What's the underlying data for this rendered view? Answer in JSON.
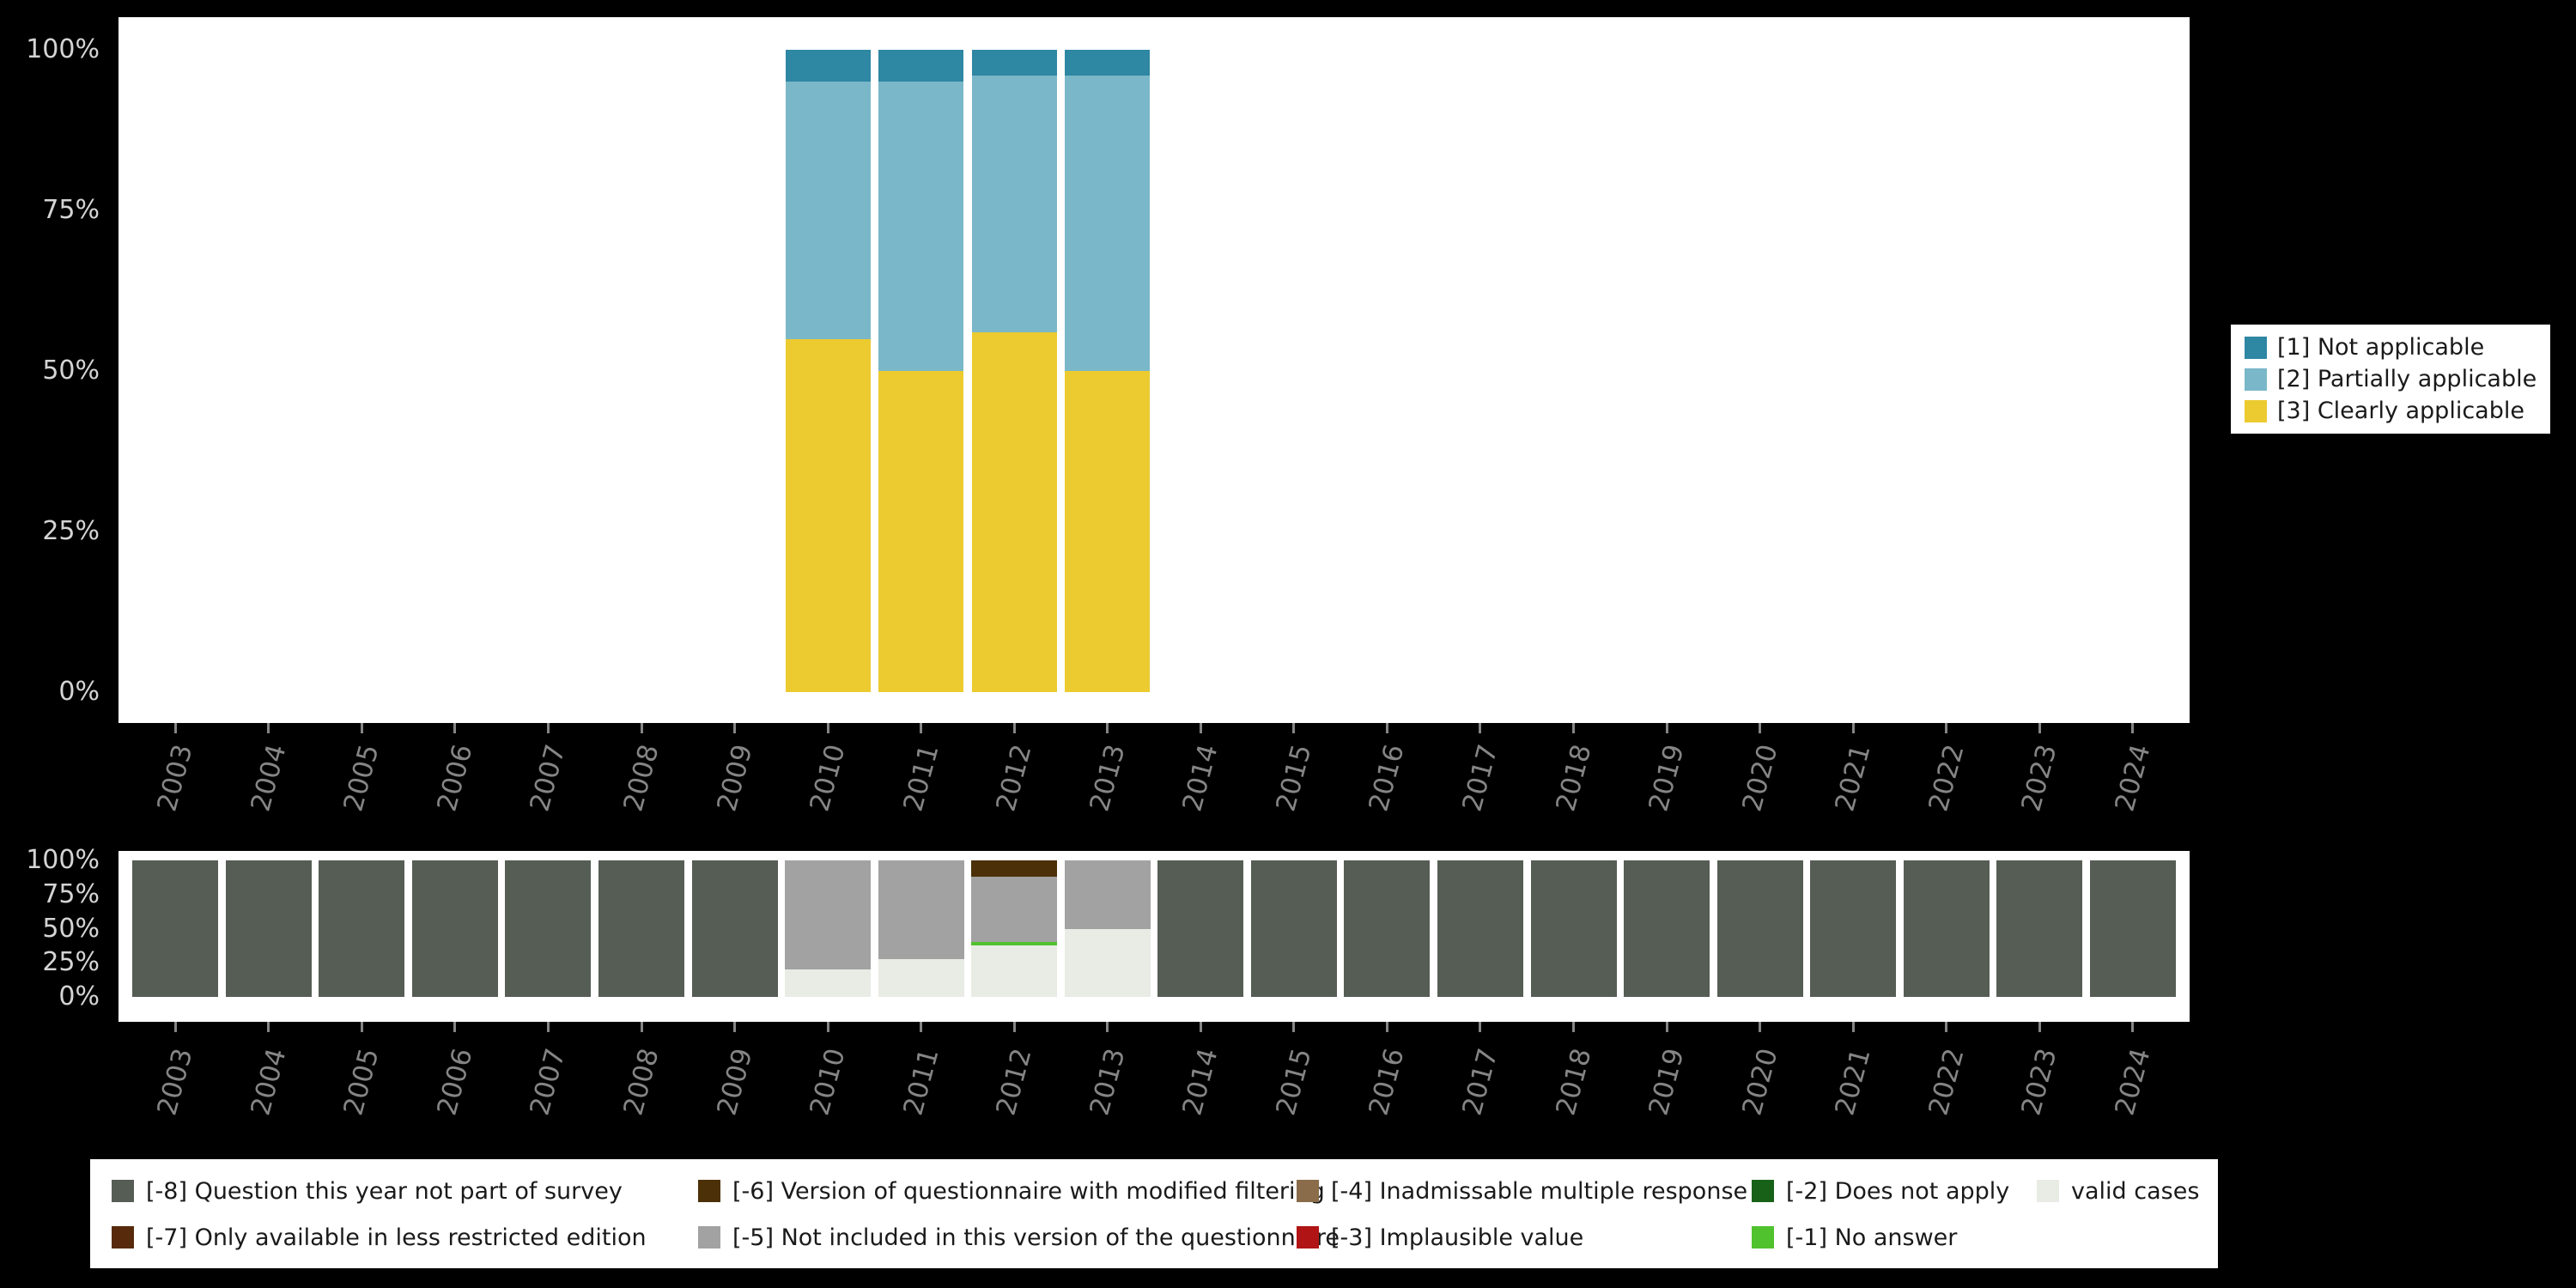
{
  "figure": {
    "background": "#000000",
    "panel_background": "#ffffff",
    "ytick_color": "#d4d4d4",
    "xtick_color": "#858585"
  },
  "years": [
    "2003",
    "2004",
    "2005",
    "2006",
    "2007",
    "2008",
    "2009",
    "2010",
    "2011",
    "2012",
    "2013",
    "2014",
    "2015",
    "2016",
    "2017",
    "2018",
    "2019",
    "2020",
    "2021",
    "2022",
    "2023",
    "2024"
  ],
  "chart_data": [
    {
      "id": "applicability",
      "type": "bar",
      "stacked": true,
      "title": "",
      "xlabel": "",
      "ylabel": "",
      "ylim": [
        0,
        100
      ],
      "grid": false,
      "yticks": [
        "100%",
        "75%",
        "50%",
        "25%",
        "0%"
      ],
      "categories": [
        "2003",
        "2004",
        "2005",
        "2006",
        "2007",
        "2008",
        "2009",
        "2010",
        "2011",
        "2012",
        "2013",
        "2014",
        "2015",
        "2016",
        "2017",
        "2018",
        "2019",
        "2020",
        "2021",
        "2022",
        "2023",
        "2024"
      ],
      "series": [
        {
          "name": "[3] Clearly applicable",
          "color": "#eccb30",
          "values": [
            0,
            0,
            0,
            0,
            0,
            0,
            0,
            55,
            50,
            56,
            50,
            0,
            0,
            0,
            0,
            0,
            0,
            0,
            0,
            0,
            0,
            0
          ]
        },
        {
          "name": "[2] Partially applicable",
          "color": "#7ab7c9",
          "values": [
            0,
            0,
            0,
            0,
            0,
            0,
            0,
            40,
            45,
            40,
            46,
            0,
            0,
            0,
            0,
            0,
            0,
            0,
            0,
            0,
            0,
            0
          ]
        },
        {
          "name": "[1] Not applicable",
          "color": "#2e87a3",
          "values": [
            0,
            0,
            0,
            0,
            0,
            0,
            0,
            5,
            5,
            4,
            4,
            0,
            0,
            0,
            0,
            0,
            0,
            0,
            0,
            0,
            0,
            0
          ]
        }
      ],
      "legend": {
        "position": "right",
        "items": [
          {
            "label": "[1] Not applicable",
            "color": "#2e87a3"
          },
          {
            "label": "[2] Partially applicable",
            "color": "#7ab7c9"
          },
          {
            "label": "[3] Clearly applicable",
            "color": "#eccb30"
          }
        ]
      }
    },
    {
      "id": "missing_values",
      "type": "bar",
      "stacked": true,
      "title": "",
      "xlabel": "",
      "ylabel": "",
      "ylim": [
        0,
        100
      ],
      "grid": false,
      "yticks": [
        "100%",
        "75%",
        "50%",
        "25%",
        "0%"
      ],
      "categories": [
        "2003",
        "2004",
        "2005",
        "2006",
        "2007",
        "2008",
        "2009",
        "2010",
        "2011",
        "2012",
        "2013",
        "2014",
        "2015",
        "2016",
        "2017",
        "2018",
        "2019",
        "2020",
        "2021",
        "2022",
        "2023",
        "2024"
      ],
      "series": [
        {
          "name": "valid cases",
          "color": "#e9ece5",
          "values": [
            0,
            0,
            0,
            0,
            0,
            0,
            0,
            20,
            28,
            38,
            50,
            0,
            0,
            0,
            0,
            0,
            0,
            0,
            0,
            0,
            0,
            0
          ]
        },
        {
          "name": "[-1] No answer",
          "color": "#50c22e",
          "values": [
            0,
            0,
            0,
            0,
            0,
            0,
            0,
            0,
            0,
            2,
            0,
            0,
            0,
            0,
            0,
            0,
            0,
            0,
            0,
            0,
            0,
            0
          ]
        },
        {
          "name": "[-2] Does not apply",
          "color": "#186118",
          "values": [
            0,
            0,
            0,
            0,
            0,
            0,
            0,
            0,
            0,
            0,
            0,
            0,
            0,
            0,
            0,
            0,
            0,
            0,
            0,
            0,
            0,
            0
          ]
        },
        {
          "name": "[-3] Implausible value",
          "color": "#b01414",
          "values": [
            0,
            0,
            0,
            0,
            0,
            0,
            0,
            0,
            0,
            0,
            0,
            0,
            0,
            0,
            0,
            0,
            0,
            0,
            0,
            0,
            0,
            0
          ]
        },
        {
          "name": "[-4] Inadmissable multiple response",
          "color": "#8a6c4a",
          "values": [
            0,
            0,
            0,
            0,
            0,
            0,
            0,
            0,
            0,
            0,
            0,
            0,
            0,
            0,
            0,
            0,
            0,
            0,
            0,
            0,
            0,
            0
          ]
        },
        {
          "name": "[-5] Not included in this version of the questionnaire",
          "color": "#a2a2a2",
          "values": [
            0,
            0,
            0,
            0,
            0,
            0,
            0,
            80,
            72,
            48,
            50,
            0,
            0,
            0,
            0,
            0,
            0,
            0,
            0,
            0,
            0,
            0
          ]
        },
        {
          "name": "[-6] Version of questionnaire with modified filtering",
          "color": "#4c3008",
          "values": [
            0,
            0,
            0,
            0,
            0,
            0,
            0,
            0,
            0,
            12,
            0,
            0,
            0,
            0,
            0,
            0,
            0,
            0,
            0,
            0,
            0,
            0
          ]
        },
        {
          "name": "[-7] Only available in less restricted edition",
          "color": "#572a0c",
          "values": [
            0,
            0,
            0,
            0,
            0,
            0,
            0,
            0,
            0,
            0,
            0,
            0,
            0,
            0,
            0,
            0,
            0,
            0,
            0,
            0,
            0,
            0
          ]
        },
        {
          "name": "[-8] Question this year not part of survey",
          "color": "#565d55",
          "values": [
            100,
            100,
            100,
            100,
            100,
            100,
            100,
            0,
            0,
            0,
            0,
            100,
            100,
            100,
            100,
            100,
            100,
            100,
            100,
            100,
            100,
            100
          ]
        }
      ],
      "legend": {
        "position": "bottom",
        "rows": [
          [
            {
              "label": "[-8] Question this year not part of survey",
              "color": "#565d55"
            },
            {
              "label": "[-6] Version of questionnaire with modified filtering",
              "color": "#4c3008"
            },
            {
              "label": "[-4] Inadmissable multiple response",
              "color": "#8a6c4a"
            },
            {
              "label": "[-2] Does not apply",
              "color": "#186118"
            },
            {
              "label": "valid cases",
              "color": "#e9ece5"
            }
          ],
          [
            {
              "label": "[-7] Only available in less restricted edition",
              "color": "#572a0c"
            },
            {
              "label": "[-5] Not included in this version of the questionnaire",
              "color": "#a2a2a2"
            },
            {
              "label": "[-3] Implausible value",
              "color": "#b01414"
            },
            {
              "label": "[-1] No answer",
              "color": "#50c22e"
            }
          ]
        ]
      }
    }
  ]
}
